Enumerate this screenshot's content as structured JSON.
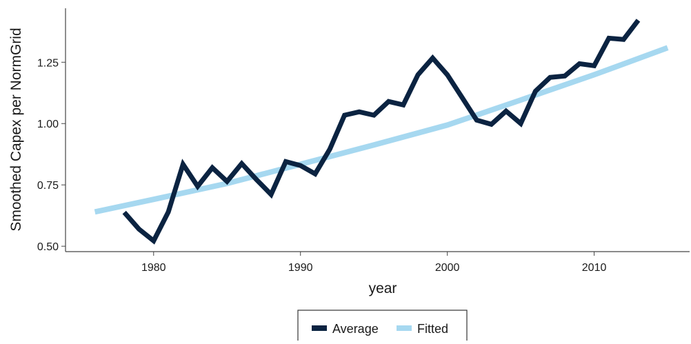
{
  "chart_data": {
    "type": "line",
    "x_label": "year",
    "y_label": "Smoothed Capex per NormGrid",
    "xlim": [
      1974,
      2016.5
    ],
    "ylim": [
      0.478,
      1.47
    ],
    "xticks": [
      1980,
      1990,
      2000,
      2010
    ],
    "yticks": [
      {
        "value": 0.5,
        "label": "0.50"
      },
      {
        "value": 0.75,
        "label": "0.75"
      },
      {
        "value": 1.0,
        "label": "1.00"
      },
      {
        "value": 1.25,
        "label": "1.25"
      }
    ],
    "grid": false,
    "legend": "bottom",
    "series": [
      {
        "name": "Average",
        "color": "#0b2341",
        "x": [
          1978,
          1979,
          1980,
          1981,
          1982,
          1983,
          1984,
          1985,
          1986,
          1987,
          1988,
          1989,
          1990,
          1991,
          1992,
          1993,
          1994,
          1995,
          1996,
          1997,
          1998,
          1999,
          2000,
          2001,
          2002,
          2003,
          2004,
          2005,
          2006,
          2007,
          2008,
          2009,
          2010,
          2011,
          2012,
          2013
        ],
        "values": [
          0.638,
          0.57,
          0.522,
          0.64,
          0.834,
          0.744,
          0.82,
          0.764,
          0.837,
          0.772,
          0.711,
          0.845,
          0.829,
          0.795,
          0.896,
          1.034,
          1.048,
          1.034,
          1.09,
          1.076,
          1.199,
          1.267,
          1.199,
          1.107,
          1.014,
          0.997,
          1.051,
          1.0,
          1.132,
          1.188,
          1.194,
          1.244,
          1.236,
          1.348,
          1.343,
          1.421
        ]
      },
      {
        "name": "Fitted",
        "color": "#a6d8f0",
        "x": [
          1976,
          1980,
          1985,
          1990,
          1995,
          2000,
          2005,
          2010,
          2015
        ],
        "values": [
          0.64,
          0.691,
          0.756,
          0.834,
          0.913,
          0.994,
          1.096,
          1.199,
          1.309
        ]
      }
    ]
  }
}
